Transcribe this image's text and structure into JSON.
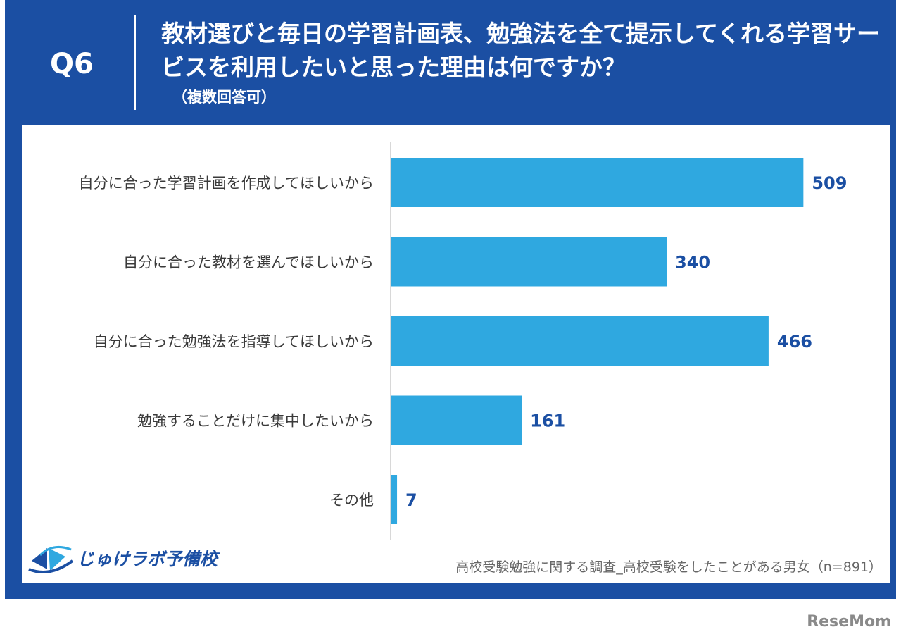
{
  "header": {
    "question_no": "Q6",
    "title": "教材選びと毎日の学習計画表、勉強法を全て提示してくれる学習サービスを利用したいと思った理由は何ですか？",
    "subtitle": "（複数回答可）"
  },
  "chart_data": {
    "type": "bar",
    "orientation": "horizontal",
    "categories": [
      "自分に合った学習計画を作成してほしいから",
      "自分に合った教材を選んでほしいから",
      "自分に合った勉強法を指導してほしいから",
      "勉強することだけに集中したいから",
      "その他"
    ],
    "values": [
      509,
      340,
      466,
      161,
      7
    ],
    "xlim": [
      0,
      600
    ],
    "grid": false,
    "legend": "none",
    "bar_color": "#2fa8e0",
    "value_color": "#1b4fa3"
  },
  "footer": {
    "logo_text": "じゅけラボ予備校",
    "source": "高校受験勉強に関する調査_高校受験をしたことがある男女（n=891）",
    "watermark": "ReseMom"
  },
  "colors": {
    "frame": "#1b4fa3",
    "bar": "#2fa8e0"
  }
}
